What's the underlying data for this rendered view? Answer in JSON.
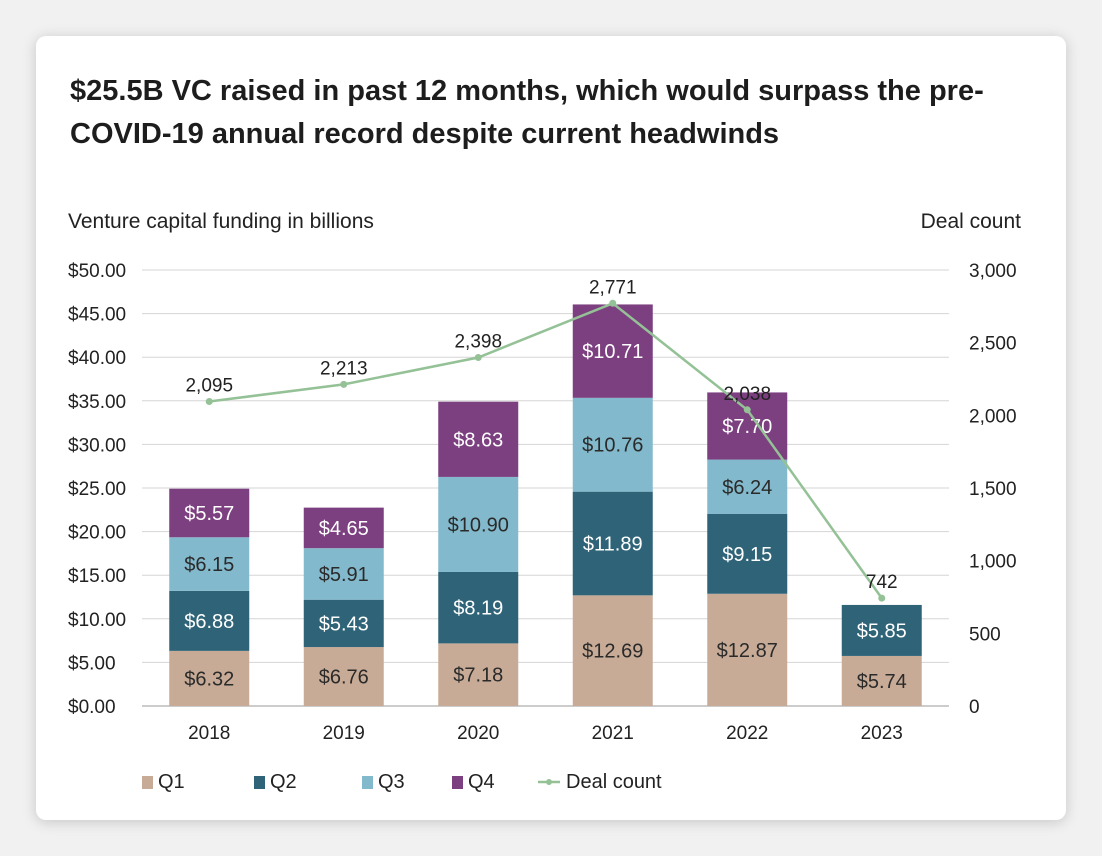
{
  "title": "$25.5B VC raised in past 12 months, which would surpass the pre-COVID-19 annual record despite current headwinds",
  "colors": {
    "q1": "#c8ab97",
    "q2": "#2f6478",
    "q3": "#83b9cc",
    "q4": "#7c3f80",
    "deal_count": "#94c196",
    "grid": "#d5d5d5"
  },
  "chart_data": {
    "type": "bar",
    "stacked": true,
    "categories": [
      "2018",
      "2019",
      "2020",
      "2021",
      "2022",
      "2023"
    ],
    "series": [
      {
        "name": "Q1",
        "values": [
          6.32,
          6.76,
          7.18,
          12.69,
          12.87,
          5.74
        ],
        "labels": [
          "$6.32",
          "$6.76",
          "$7.18",
          "$12.69",
          "$12.87",
          "$5.74"
        ]
      },
      {
        "name": "Q2",
        "values": [
          6.88,
          5.43,
          8.19,
          11.89,
          9.15,
          5.85
        ],
        "labels": [
          "$6.88",
          "$5.43",
          "$8.19",
          "$11.89",
          "$9.15",
          "$5.85"
        ]
      },
      {
        "name": "Q3",
        "values": [
          6.15,
          5.91,
          10.9,
          10.76,
          6.24,
          null
        ],
        "labels": [
          "$6.15",
          "$5.91",
          "$10.90",
          "$10.76",
          "$6.24",
          ""
        ]
      },
      {
        "name": "Q4",
        "values": [
          5.57,
          4.65,
          8.63,
          10.71,
          7.7,
          null
        ],
        "labels": [
          "$5.57",
          "$4.65",
          "$8.63",
          "$10.71",
          "$7.70",
          ""
        ]
      }
    ],
    "line_series": {
      "name": "Deal count",
      "values": [
        2095,
        2213,
        2398,
        2771,
        2038,
        742
      ],
      "labels": [
        "2,095",
        "2,213",
        "2,398",
        "2,771",
        "2,038",
        "742"
      ],
      "axis": "right"
    },
    "ylabel": "Venture capital funding in billions",
    "y2label": "Deal count",
    "ylim": [
      0,
      50
    ],
    "y2lim": [
      0,
      3000
    ],
    "yticks": [
      "$0.00",
      "$5.00",
      "$10.00",
      "$15.00",
      "$20.00",
      "$25.00",
      "$30.00",
      "$35.00",
      "$40.00",
      "$45.00",
      "$50.00"
    ],
    "y2ticks": [
      "0",
      "500",
      "1,000",
      "1,500",
      "2,000",
      "2,500",
      "3,000"
    ],
    "legend": [
      "Q1",
      "Q2",
      "Q3",
      "Q4",
      "Deal count"
    ],
    "legend_position": "bottom-left",
    "grid": true
  }
}
